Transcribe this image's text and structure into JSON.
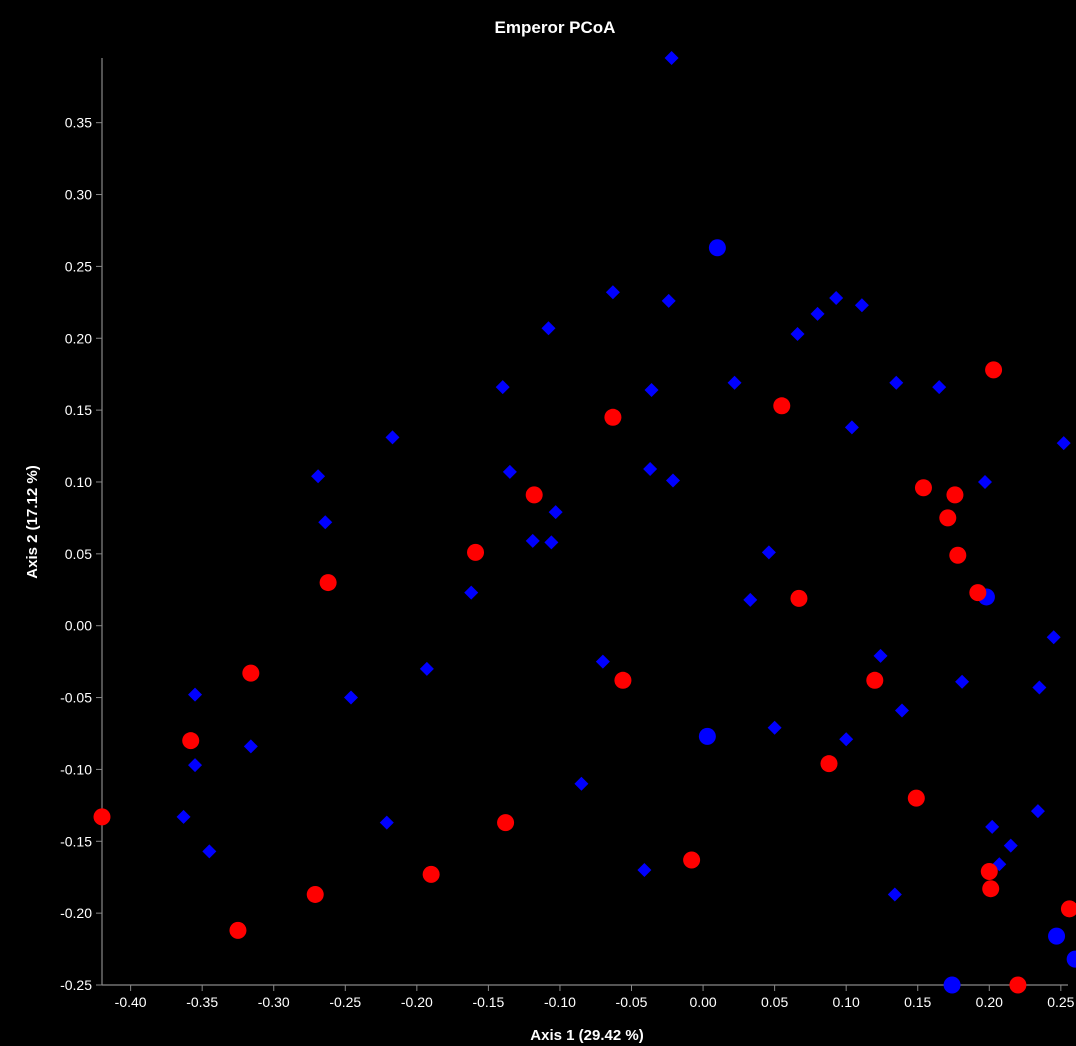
{
  "chart_data": {
    "type": "scatter",
    "title": "Emperor PCoA",
    "xlabel": "Axis 1 (29.42 %)",
    "ylabel": "Axis 2 (17.12 %)",
    "xlim": [
      -0.42,
      0.255
    ],
    "ylim": [
      -0.25,
      0.395
    ],
    "x_ticks": [
      "-0.40",
      "-0.35",
      "-0.30",
      "-0.25",
      "-0.20",
      "-0.15",
      "-0.10",
      "-0.05",
      "0.00",
      "0.05",
      "0.10",
      "0.15",
      "0.20",
      "0.25"
    ],
    "x_tick_values": [
      -0.4,
      -0.35,
      -0.3,
      -0.25,
      -0.2,
      -0.15,
      -0.1,
      -0.05,
      0.0,
      0.05,
      0.1,
      0.15,
      0.2,
      0.25
    ],
    "y_ticks": [
      "-0.25",
      "-0.20",
      "-0.15",
      "-0.10",
      "-0.05",
      "0.00",
      "0.05",
      "0.10",
      "0.15",
      "0.20",
      "0.25",
      "0.30",
      "0.35"
    ],
    "y_tick_values": [
      -0.25,
      -0.2,
      -0.15,
      -0.1,
      -0.05,
      0.0,
      0.05,
      0.1,
      0.15,
      0.2,
      0.25,
      0.3,
      0.35
    ],
    "grid": false,
    "series": [
      {
        "marker": "diamond",
        "color": "#0000ff",
        "points": [
          [
            -0.022,
            0.395
          ],
          [
            -0.063,
            0.232
          ],
          [
            -0.024,
            0.226
          ],
          [
            -0.108,
            0.207
          ],
          [
            0.093,
            0.228
          ],
          [
            0.111,
            0.223
          ],
          [
            0.08,
            0.217
          ],
          [
            0.066,
            0.203
          ],
          [
            -0.14,
            0.166
          ],
          [
            -0.036,
            0.164
          ],
          [
            0.022,
            0.169
          ],
          [
            0.135,
            0.169
          ],
          [
            0.165,
            0.166
          ],
          [
            0.104,
            0.138
          ],
          [
            -0.217,
            0.131
          ],
          [
            0.252,
            0.127
          ],
          [
            -0.269,
            0.104
          ],
          [
            -0.135,
            0.107
          ],
          [
            -0.037,
            0.109
          ],
          [
            -0.021,
            0.101
          ],
          [
            0.197,
            0.1
          ],
          [
            -0.264,
            0.072
          ],
          [
            -0.103,
            0.079
          ],
          [
            -0.119,
            0.059
          ],
          [
            -0.106,
            0.058
          ],
          [
            0.046,
            0.051
          ],
          [
            -0.162,
            0.023
          ],
          [
            0.033,
            0.018
          ],
          [
            0.245,
            -0.008
          ],
          [
            -0.07,
            -0.025
          ],
          [
            0.124,
            -0.021
          ],
          [
            -0.193,
            -0.03
          ],
          [
            -0.355,
            -0.048
          ],
          [
            -0.246,
            -0.05
          ],
          [
            0.181,
            -0.039
          ],
          [
            0.235,
            -0.043
          ],
          [
            0.139,
            -0.059
          ],
          [
            0.05,
            -0.071
          ],
          [
            -0.316,
            -0.084
          ],
          [
            0.1,
            -0.079
          ],
          [
            -0.355,
            -0.097
          ],
          [
            -0.085,
            -0.11
          ],
          [
            -0.363,
            -0.133
          ],
          [
            -0.221,
            -0.137
          ],
          [
            0.234,
            -0.129
          ],
          [
            0.202,
            -0.14
          ],
          [
            -0.345,
            -0.157
          ],
          [
            0.215,
            -0.153
          ],
          [
            0.207,
            -0.166
          ],
          [
            -0.041,
            -0.17
          ],
          [
            0.134,
            -0.187
          ]
        ]
      },
      {
        "marker": "circle",
        "color": "#0000ff",
        "points": [
          [
            0.01,
            0.263
          ],
          [
            0.198,
            0.02
          ],
          [
            0.003,
            -0.077
          ],
          [
            0.174,
            -0.25
          ],
          [
            0.247,
            -0.216
          ],
          [
            0.26,
            -0.232
          ]
        ]
      },
      {
        "marker": "circle",
        "color": "#ff0000",
        "points": [
          [
            0.203,
            0.178
          ],
          [
            0.055,
            0.153
          ],
          [
            -0.063,
            0.145
          ],
          [
            0.154,
            0.096
          ],
          [
            0.176,
            0.091
          ],
          [
            -0.118,
            0.091
          ],
          [
            0.171,
            0.075
          ],
          [
            -0.159,
            0.051
          ],
          [
            0.178,
            0.049
          ],
          [
            -0.262,
            0.03
          ],
          [
            0.192,
            0.023
          ],
          [
            0.067,
            0.019
          ],
          [
            -0.316,
            -0.033
          ],
          [
            -0.056,
            -0.038
          ],
          [
            0.12,
            -0.038
          ],
          [
            -0.358,
            -0.08
          ],
          [
            0.088,
            -0.096
          ],
          [
            0.149,
            -0.12
          ],
          [
            -0.42,
            -0.133
          ],
          [
            -0.138,
            -0.137
          ],
          [
            -0.008,
            -0.163
          ],
          [
            0.2,
            -0.171
          ],
          [
            -0.19,
            -0.173
          ],
          [
            0.201,
            -0.183
          ],
          [
            -0.271,
            -0.187
          ],
          [
            0.256,
            -0.197
          ],
          [
            -0.325,
            -0.212
          ],
          [
            0.22,
            -0.25
          ]
        ]
      }
    ]
  }
}
